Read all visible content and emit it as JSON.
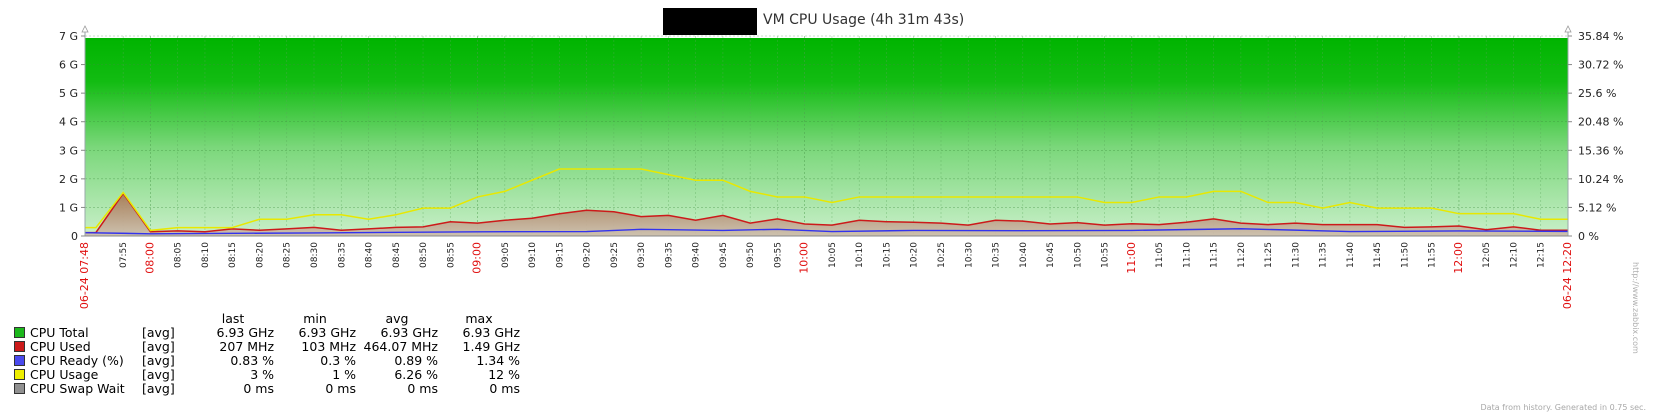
{
  "chart_data": {
    "type": "area",
    "title": "VM CPU Usage (4h 31m 43s)",
    "redacted_prefix": true,
    "left_axis": {
      "ticks": [
        "0",
        "1 G",
        "2 G",
        "3 G",
        "4 G",
        "5 G",
        "6 G",
        "7 G"
      ],
      "min": 0,
      "max": 7
    },
    "right_axis": {
      "ticks": [
        "0 %",
        "5.12 %",
        "10.24 %",
        "15.36 %",
        "20.48 %",
        "25.6 %",
        "30.72 %",
        "35.84 %"
      ],
      "min": 0,
      "max": 35.84
    },
    "x_start_label": "06-24 07:48",
    "x_end_label": "06-24 12:20",
    "x_tick_labels": [
      "07:55",
      "08:00",
      "08:05",
      "08:10",
      "08:15",
      "08:20",
      "08:25",
      "08:30",
      "08:35",
      "08:40",
      "08:45",
      "08:50",
      "08:55",
      "09:00",
      "09:05",
      "09:10",
      "09:15",
      "09:20",
      "09:25",
      "09:30",
      "09:35",
      "09:40",
      "09:45",
      "09:50",
      "09:55",
      "10:00",
      "10:05",
      "10:10",
      "10:15",
      "10:20",
      "10:25",
      "10:30",
      "10:35",
      "10:40",
      "10:45",
      "10:50",
      "10:55",
      "11:00",
      "11:05",
      "11:10",
      "11:15",
      "11:20",
      "11:25",
      "11:30",
      "11:35",
      "11:40",
      "11:45",
      "11:50",
      "11:55",
      "12:00",
      "12:05",
      "12:10",
      "12:15"
    ],
    "x_hour_labels": [
      "08:00",
      "09:00",
      "10:00",
      "11:00",
      "12:00"
    ],
    "grid": true,
    "series": [
      {
        "name": "CPU Total",
        "color": "#1cb81c",
        "axis": "left",
        "unit": "GHz",
        "constant": 6.93
      },
      {
        "name": "CPU Used",
        "color": "#cc1a1a",
        "axis": "left",
        "unit": "GHz",
        "x": [
          "07:48",
          "07:50",
          "07:55",
          "08:00",
          "08:05",
          "08:10",
          "08:15",
          "08:20",
          "08:25",
          "08:30",
          "08:35",
          "08:40",
          "08:45",
          "08:50",
          "08:55",
          "09:00",
          "09:05",
          "09:10",
          "09:15",
          "09:20",
          "09:25",
          "09:30",
          "09:35",
          "09:40",
          "09:45",
          "09:50",
          "09:55",
          "10:00",
          "10:05",
          "10:10",
          "10:15",
          "10:20",
          "10:25",
          "10:30",
          "10:35",
          "10:40",
          "10:45",
          "10:50",
          "10:55",
          "11:00",
          "11:05",
          "11:10",
          "11:15",
          "11:20",
          "11:25",
          "11:30",
          "11:35",
          "11:40",
          "11:45",
          "11:50",
          "11:55",
          "12:00",
          "12:05",
          "12:10",
          "12:15",
          "12:20"
        ],
        "values": [
          0.12,
          0.12,
          1.49,
          0.15,
          0.18,
          0.15,
          0.25,
          0.2,
          0.25,
          0.3,
          0.2,
          0.25,
          0.3,
          0.32,
          0.5,
          0.45,
          0.55,
          0.62,
          0.78,
          0.9,
          0.85,
          0.68,
          0.72,
          0.55,
          0.72,
          0.45,
          0.6,
          0.42,
          0.38,
          0.55,
          0.5,
          0.48,
          0.45,
          0.38,
          0.55,
          0.52,
          0.42,
          0.47,
          0.38,
          0.43,
          0.4,
          0.48,
          0.6,
          0.45,
          0.4,
          0.45,
          0.4,
          0.4,
          0.4,
          0.3,
          0.32,
          0.35,
          0.22,
          0.32,
          0.2,
          0.2
        ]
      },
      {
        "name": "CPU Ready (%)",
        "color": "#3333ee",
        "axis": "right",
        "unit": "%",
        "x": [
          "07:48",
          "08:00",
          "08:30",
          "09:00",
          "09:20",
          "09:30",
          "09:45",
          "09:55",
          "10:05",
          "10:20",
          "10:40",
          "11:00",
          "11:20",
          "11:40",
          "12:00",
          "12:20"
        ],
        "values": [
          0.6,
          0.4,
          0.55,
          0.75,
          0.8,
          1.2,
          1.0,
          1.2,
          0.8,
          1.0,
          0.95,
          1.0,
          1.3,
          0.8,
          0.9,
          0.83
        ]
      },
      {
        "name": "CPU Usage",
        "color": "#e8e800",
        "axis": "right",
        "unit": "%",
        "x": [
          "07:48",
          "07:50",
          "07:55",
          "08:00",
          "08:05",
          "08:10",
          "08:15",
          "08:20",
          "08:25",
          "08:30",
          "08:35",
          "08:40",
          "08:45",
          "08:50",
          "08:55",
          "09:00",
          "09:05",
          "09:10",
          "09:15",
          "09:20",
          "09:25",
          "09:30",
          "09:35",
          "09:40",
          "09:45",
          "09:50",
          "09:55",
          "10:00",
          "10:05",
          "10:10",
          "10:15",
          "10:20",
          "10:25",
          "10:30",
          "10:35",
          "10:40",
          "10:45",
          "10:50",
          "10:55",
          "11:00",
          "11:05",
          "11:10",
          "11:15",
          "11:20",
          "11:25",
          "11:30",
          "11:35",
          "11:40",
          "11:45",
          "11:50",
          "11:55",
          "12:00",
          "12:05",
          "12:10",
          "12:15",
          "12:20"
        ],
        "values": [
          1.5,
          1.5,
          7.8,
          1,
          1.5,
          1.5,
          1.5,
          3,
          3,
          3.8,
          3.8,
          3,
          3.8,
          5,
          5,
          7,
          8,
          10,
          12,
          12,
          12,
          12,
          11,
          10,
          10,
          8,
          7,
          7,
          6,
          7,
          7,
          7,
          7,
          7,
          7,
          7,
          7,
          7,
          6,
          6,
          7,
          7,
          8,
          8,
          6,
          6,
          5,
          6,
          5,
          5,
          5,
          4,
          4,
          4,
          3,
          3
        ]
      },
      {
        "name": "CPU Swap Wait",
        "color": "#909090",
        "axis": "right",
        "unit": "ms",
        "values": [
          0
        ]
      }
    ]
  },
  "legend": {
    "headers": {
      "last": "last",
      "min": "min",
      "avg": "avg",
      "max": "max"
    },
    "rows": [
      {
        "name": "CPU Total",
        "color": "#1cb81c",
        "fn": "[avg]",
        "last": "6.93 GHz",
        "min": "6.93 GHz",
        "avg": "6.93 GHz",
        "max": "6.93 GHz"
      },
      {
        "name": "CPU Used",
        "color": "#cc1a1a",
        "fn": "[avg]",
        "last": "207 MHz",
        "min": "103 MHz",
        "avg": "464.07 MHz",
        "max": "1.49 GHz"
      },
      {
        "name": "CPU Ready (%)",
        "color": "#4a4aee",
        "fn": "[avg]",
        "last": "0.83 %",
        "min": "0.3 %",
        "avg": "0.89 %",
        "max": "1.34 %"
      },
      {
        "name": "CPU Usage",
        "color": "#eeee00",
        "fn": "[avg]",
        "last": "3 %",
        "min": "1 %",
        "avg": "6.26 %",
        "max": "12 %"
      },
      {
        "name": "CPU Swap Wait",
        "color": "#909090",
        "fn": "[avg]",
        "last": "0 ms",
        "min": "0 ms",
        "avg": "0 ms",
        "max": "0 ms"
      }
    ]
  },
  "footer": {
    "generated": "Data from history. Generated in 0.75 sec.",
    "site": "http://www.zabbix.com"
  }
}
